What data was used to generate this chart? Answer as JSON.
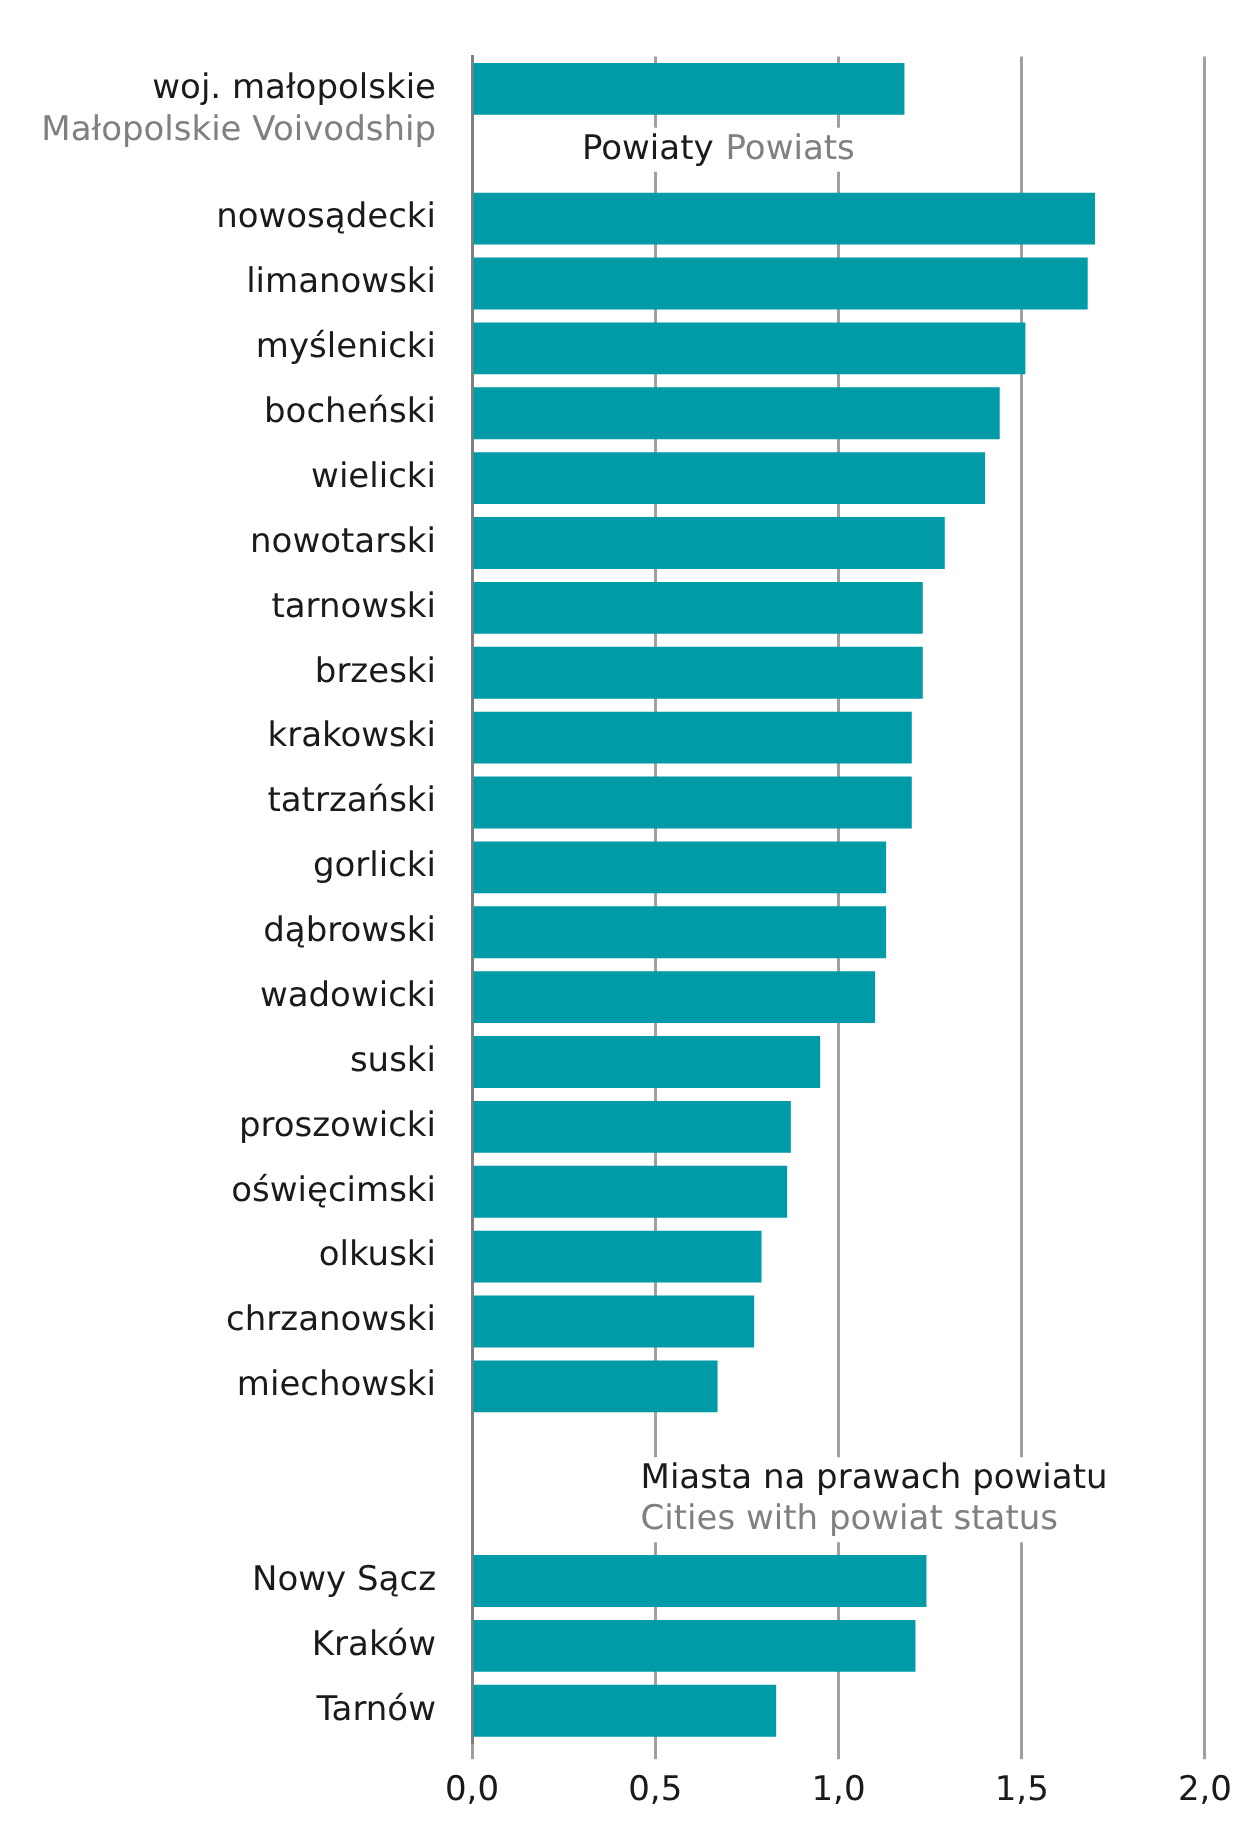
{
  "chart_data": {
    "type": "bar",
    "orientation": "horizontal",
    "categories": [
      "woj. małopolskie",
      null,
      "nowosądecki",
      "limanowski",
      "myślenicki",
      "bocheński",
      "wielicki",
      "nowotarski",
      "tarnowski",
      "brzeski",
      "krakowski",
      "tatrzański",
      "gorlicki",
      "dąbrowski",
      "wadowicki",
      "suski",
      "proszowicki",
      "oświęcimski",
      "olkuski",
      "chrzanowski",
      "miechowski",
      null,
      null,
      "Nowy Sącz",
      "Kraków",
      "Tarnów"
    ],
    "values": [
      1.18,
      null,
      1.7,
      1.68,
      1.51,
      1.44,
      1.4,
      1.29,
      1.23,
      1.23,
      1.2,
      1.2,
      1.13,
      1.13,
      1.1,
      0.95,
      0.87,
      0.86,
      0.79,
      0.77,
      0.67,
      null,
      null,
      1.24,
      1.21,
      0.83
    ],
    "color": "#009ba6",
    "xlim": [
      0,
      2
    ],
    "xticks": [
      {
        "value": 0,
        "label": "0,0"
      },
      {
        "value": 0.5,
        "label": "0,5"
      },
      {
        "value": 1,
        "label": "1,0"
      },
      {
        "value": 1.5,
        "label": "1,5"
      },
      {
        "value": 2,
        "label": "2,0"
      }
    ],
    "grid": "x",
    "annotations": [
      "Małopolskie Voivodship",
      "Powiaty",
      "Powiats",
      "Miasta na prawach powiatu",
      "Cities with powiat status"
    ]
  }
}
